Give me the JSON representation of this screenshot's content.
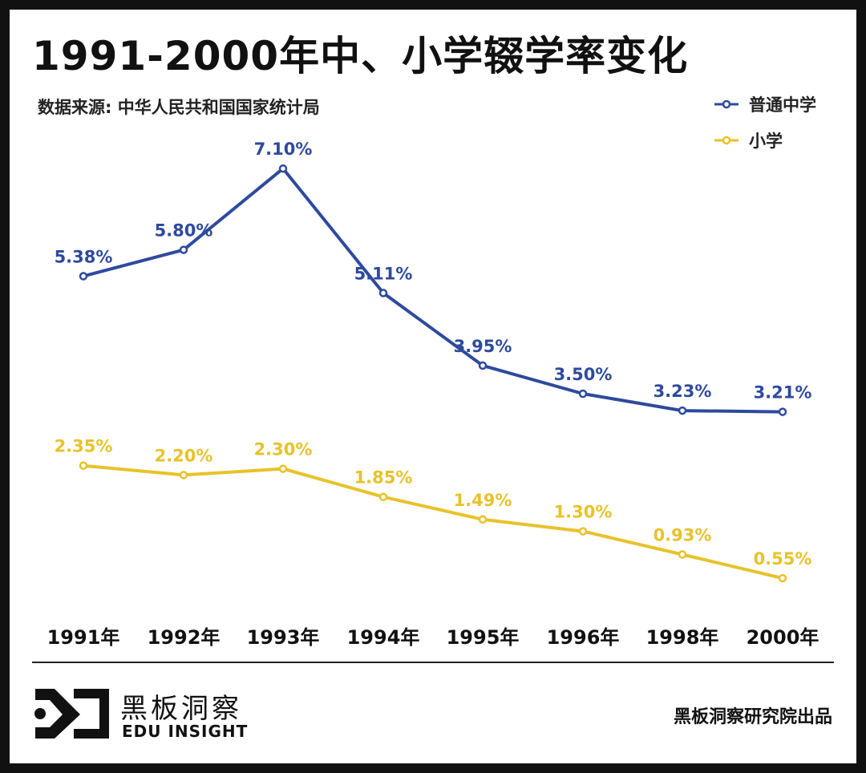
{
  "title": "1991-2000年中、小学辍学率变化",
  "source": "数据来源: 中华人民共和国国家统计局",
  "chart_data": {
    "type": "line",
    "categories": [
      "1991年",
      "1992年",
      "1993年",
      "1994年",
      "1995年",
      "1996年",
      "1998年",
      "2000年"
    ],
    "series": [
      {
        "name": "普通中学",
        "color": "#2e4a9e",
        "values": [
          5.38,
          5.8,
          7.1,
          5.11,
          3.95,
          3.5,
          3.23,
          3.21
        ],
        "labels": [
          "5.38%",
          "5.80%",
          "7.10%",
          "5.11%",
          "3.95%",
          "3.50%",
          "3.23%",
          "3.21%"
        ]
      },
      {
        "name": "小学",
        "color": "#e8c22a",
        "values": [
          2.35,
          2.2,
          2.3,
          1.85,
          1.49,
          1.3,
          0.93,
          0.55
        ],
        "labels": [
          "2.35%",
          "2.20%",
          "2.30%",
          "1.85%",
          "1.49%",
          "1.30%",
          "0.93%",
          "0.55%"
        ]
      }
    ],
    "legend_position": "top-right",
    "grid": false
  },
  "footer": {
    "logo_icon": "eye-play-logo",
    "logo_zh": "黑板洞察",
    "logo_en": "EDU INSIGHT",
    "credit": "黑板洞察研究院出品"
  }
}
